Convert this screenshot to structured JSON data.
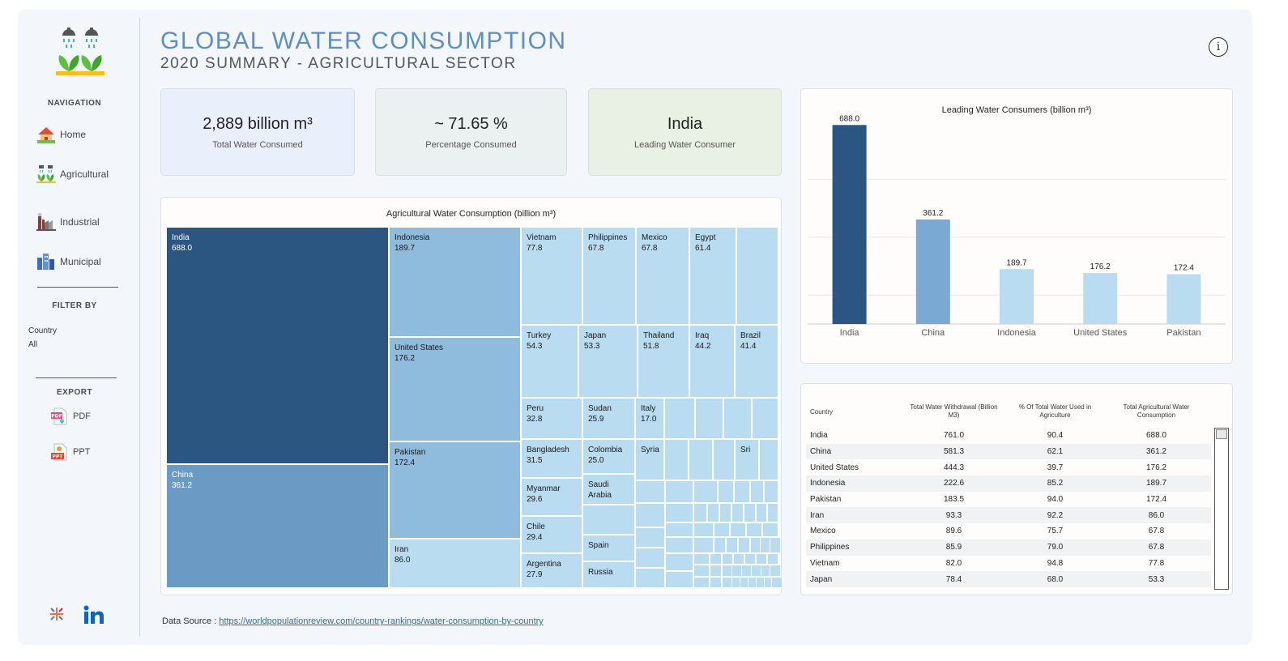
{
  "header": {
    "title": "GLOBAL WATER CONSUMPTION",
    "subtitle": "2020 SUMMARY - AGRICULTURAL SECTOR",
    "info_label": "i"
  },
  "sidebar": {
    "navigation_heading": "NAVIGATION",
    "nav_items": [
      {
        "label": "Home",
        "icon": "house-icon"
      },
      {
        "label": "Agricultural",
        "icon": "agriculture-icon"
      },
      {
        "label": "Industrial",
        "icon": "factory-icon"
      },
      {
        "label": "Municipal",
        "icon": "city-buildings-icon"
      }
    ],
    "filter_heading": "FILTER BY",
    "filter": {
      "label": "Country",
      "value": "All"
    },
    "export_heading": "EXPORT",
    "export_items": [
      {
        "label": "PDF",
        "icon": "pdf-file-icon"
      },
      {
        "label": "PPT",
        "icon": "ppt-file-icon"
      }
    ],
    "footer_icons": [
      "tableau-logo-icon",
      "linkedin-logo-icon"
    ]
  },
  "kpis": [
    {
      "value": "2,889 billion m³",
      "caption": "Total Water Consumed",
      "color": "#e9effb"
    },
    {
      "value": "~ 71.65 %",
      "caption": "Percentage Consumed",
      "color": "#eaf1f0"
    },
    {
      "value": "India",
      "caption": "Leading Water Consumer",
      "color": "#e8f1e3"
    }
  ],
  "treemap": {
    "title": "Agricultural Water Consumption (billion m³)",
    "colors": {
      "top": "#2b5681",
      "second": "#6b9bc4",
      "mid": "#8fbbdc",
      "light": "#b9dcf0"
    },
    "labeled": [
      {
        "name": "India",
        "value": "688.0"
      },
      {
        "name": "China",
        "value": "361.2"
      },
      {
        "name": "Indonesia",
        "value": "189.7"
      },
      {
        "name": "United States",
        "value": "176.2"
      },
      {
        "name": "Pakistan",
        "value": "172.4"
      },
      {
        "name": "Iran",
        "value": "86.0"
      },
      {
        "name": "Vietnam",
        "value": "77.8"
      },
      {
        "name": "Philippines",
        "value": "67.8"
      },
      {
        "name": "Mexico",
        "value": "67.8"
      },
      {
        "name": "Egypt",
        "value": "61.4"
      },
      {
        "name": "Turkey",
        "value": "54.3"
      },
      {
        "name": "Japan",
        "value": "53.3"
      },
      {
        "name": "Thailand",
        "value": "51.8"
      },
      {
        "name": "Iraq",
        "value": "44.2"
      },
      {
        "name": "Brazil",
        "value": "41.4"
      },
      {
        "name": "Peru",
        "value": "32.8"
      },
      {
        "name": "Sudan",
        "value": "25.9"
      },
      {
        "name": "Italy",
        "value": "17.0"
      },
      {
        "name": "Bangladesh",
        "value": "31.5"
      },
      {
        "name": "Colombia",
        "value": "25.0"
      },
      {
        "name": "Syria",
        "value": ""
      },
      {
        "name": "Sri",
        "value": ""
      },
      {
        "name": "Myanmar",
        "value": "29.6"
      },
      {
        "name": "Saudi Arabia",
        "value": ""
      },
      {
        "name": "Chile",
        "value": "29.4"
      },
      {
        "name": "Spain",
        "value": ""
      },
      {
        "name": "Argentina",
        "value": "27.9"
      },
      {
        "name": "Russia",
        "value": ""
      }
    ]
  },
  "bar_panel": {
    "chart_data": {
      "type": "bar",
      "title": "Leading Water Consumers (billion m³)",
      "categories": [
        "India",
        "China",
        "Indonesia",
        "United States",
        "Pakistan"
      ],
      "values": [
        688.0,
        361.2,
        189.7,
        176.2,
        172.4
      ],
      "value_labels": [
        "688.0",
        "361.2",
        "189.7",
        "176.2",
        "172.4"
      ],
      "colors": [
        "#2b5681",
        "#7aaad3",
        "#b9dcf0",
        "#b9dcf0",
        "#b9dcf0"
      ],
      "ylim": [
        0,
        700
      ],
      "grid": true
    }
  },
  "table": {
    "headers": [
      "Country",
      "Total Water Withdrawal (Billion M3)",
      "% Of Total Water Used in Agriculture",
      "Total Agricultural Water Consumption"
    ],
    "rows": [
      [
        "India",
        "761.0",
        "90.4",
        "688.0"
      ],
      [
        "China",
        "581.3",
        "62.1",
        "361.2"
      ],
      [
        "United States",
        "444.3",
        "39.7",
        "176.2"
      ],
      [
        "Indonesia",
        "222.6",
        "85.2",
        "189.7"
      ],
      [
        "Pakistan",
        "183.5",
        "94.0",
        "172.4"
      ],
      [
        "Iran",
        "93.3",
        "92.2",
        "86.0"
      ],
      [
        "Mexico",
        "89.6",
        "75.7",
        "67.8"
      ],
      [
        "Philippines",
        "85.9",
        "79.0",
        "67.8"
      ],
      [
        "Vietnam",
        "82.0",
        "94.8",
        "77.8"
      ],
      [
        "Japan",
        "78.4",
        "68.0",
        "53.3"
      ]
    ]
  },
  "footer": {
    "source_label": "Data Source : ",
    "source_link": "https://worldpopulationreview.com/country-rankings/water-consumption-by-country"
  }
}
